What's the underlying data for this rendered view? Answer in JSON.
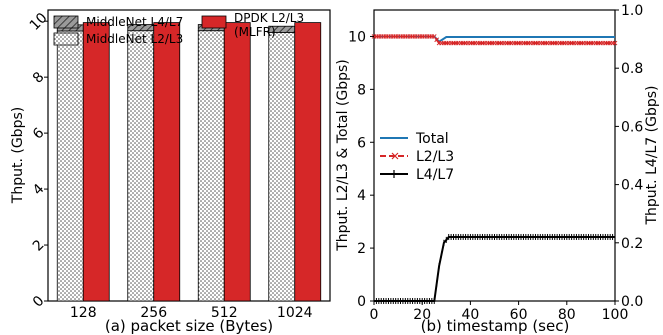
{
  "chart_data": [
    {
      "type": "bar",
      "caption": "(a) packet size (Bytes)",
      "ylabel": "Thput. (Gbps)",
      "categories": [
        "128",
        "256",
        "512",
        "1024"
      ],
      "ylim": [
        0,
        10.4
      ],
      "yticks": [
        0,
        2,
        4,
        6,
        8,
        10
      ],
      "series": [
        {
          "name": "MiddleNet L2/L3",
          "values": [
            9.65,
            9.66,
            9.66,
            9.6
          ],
          "pattern": "dots",
          "stack": "middlenet"
        },
        {
          "name": "MiddleNet L4/L7",
          "values": [
            0.22,
            0.22,
            0.22,
            0.22
          ],
          "pattern": "hatch",
          "stack": "middlenet"
        },
        {
          "name": "DPDK L2/L3\n(MLFR)",
          "values": [
            9.95,
            9.95,
            9.95,
            9.95
          ],
          "color": "#d62728",
          "stack": "dpdk"
        }
      ],
      "legend_location": "top"
    },
    {
      "type": "line",
      "caption": "(b) timestamp (sec)",
      "ylabel_left": "Thput. L2/L3 & Total (Gbps)",
      "ylabel_right": "Thput. L4/L7 (Gbps)",
      "xlim": [
        0,
        100
      ],
      "xticks": [
        0,
        20,
        40,
        60,
        80,
        100
      ],
      "ylim_left": [
        0,
        11
      ],
      "yticks_left": [
        0,
        2,
        4,
        6,
        8,
        10
      ],
      "ylim_right": [
        0,
        1.0
      ],
      "yticks_right": [
        "0.0",
        "0.2",
        "0.4",
        "0.6",
        "0.8",
        "1.0"
      ],
      "legend_location": "center-left",
      "series": [
        {
          "name": "Total",
          "color": "#1f77b4",
          "axis": "left",
          "x": [
            0,
            25,
            27,
            30,
            100
          ],
          "y": [
            10.0,
            10.0,
            9.8,
            9.98,
            9.98
          ]
        },
        {
          "name": "L2/L3",
          "color": "#d62728",
          "axis": "left",
          "x": [
            0,
            25,
            27,
            30,
            100
          ],
          "y": [
            10.0,
            10.0,
            9.75,
            9.75,
            9.75
          ]
        },
        {
          "name": "L4/L7",
          "color": "#000000",
          "axis": "right",
          "x": [
            0,
            25,
            27,
            29,
            31,
            100
          ],
          "y": [
            0.0,
            0.0,
            0.12,
            0.2,
            0.22,
            0.22
          ]
        }
      ]
    }
  ]
}
